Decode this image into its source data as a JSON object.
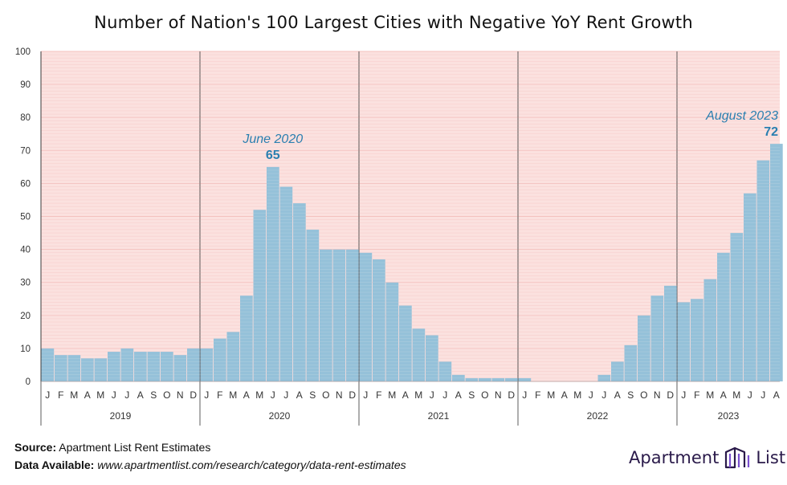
{
  "title": "Number of Nation's 100 Largest Cities with Negative YoY Rent Growth",
  "footer": {
    "source_label": "Source:",
    "source_text": "Apartment List Rent Estimates",
    "data_label": "Data Available:",
    "data_text": "www.apartmentlist.com/research/category/data-rent-estimates"
  },
  "logo": {
    "word1": "Apartment",
    "word2": "List",
    "icon": "building-icon"
  },
  "colors": {
    "bar": "#8fbfd8",
    "bar_edge": "#6fa6c4",
    "background": "#fbe1df",
    "grid": "#f2b4b1",
    "annotation": "#2a7fb0"
  },
  "chart_data": {
    "type": "bar",
    "title": "Number of Nation's 100 Largest Cities with Negative YoY Rent Growth",
    "xlabel": "",
    "ylabel": "",
    "ylim": [
      0,
      100
    ],
    "yticks": [
      0,
      10,
      20,
      30,
      40,
      50,
      60,
      70,
      80,
      90,
      100
    ],
    "grid": true,
    "years": [
      "2019",
      "2020",
      "2021",
      "2022",
      "2023"
    ],
    "month_labels": [
      "J",
      "F",
      "M",
      "A",
      "M",
      "J",
      "J",
      "A",
      "S",
      "O",
      "N",
      "D"
    ],
    "categories": [
      "2019-01",
      "2019-02",
      "2019-03",
      "2019-04",
      "2019-05",
      "2019-06",
      "2019-07",
      "2019-08",
      "2019-09",
      "2019-10",
      "2019-11",
      "2019-12",
      "2020-01",
      "2020-02",
      "2020-03",
      "2020-04",
      "2020-05",
      "2020-06",
      "2020-07",
      "2020-08",
      "2020-09",
      "2020-10",
      "2020-11",
      "2020-12",
      "2021-01",
      "2021-02",
      "2021-03",
      "2021-04",
      "2021-05",
      "2021-06",
      "2021-07",
      "2021-08",
      "2021-09",
      "2021-10",
      "2021-11",
      "2021-12",
      "2022-01",
      "2022-02",
      "2022-03",
      "2022-04",
      "2022-05",
      "2022-06",
      "2022-07",
      "2022-08",
      "2022-09",
      "2022-10",
      "2022-11",
      "2022-12",
      "2023-01",
      "2023-02",
      "2023-03",
      "2023-04",
      "2023-05",
      "2023-06",
      "2023-07",
      "2023-08"
    ],
    "values": [
      10,
      8,
      8,
      7,
      7,
      9,
      10,
      9,
      9,
      9,
      8,
      10,
      10,
      13,
      15,
      26,
      52,
      65,
      59,
      54,
      46,
      40,
      40,
      40,
      39,
      37,
      30,
      23,
      16,
      14,
      6,
      2,
      1,
      1,
      1,
      1,
      1,
      0,
      0,
      0,
      0,
      0,
      2,
      6,
      11,
      20,
      26,
      29,
      24,
      25,
      31,
      39,
      45,
      57,
      67,
      72
    ],
    "annotations": [
      {
        "label": "June 2020",
        "value_label": "65",
        "index": 17
      },
      {
        "label": "August 2023",
        "value_label": "72",
        "index": 55
      }
    ]
  }
}
